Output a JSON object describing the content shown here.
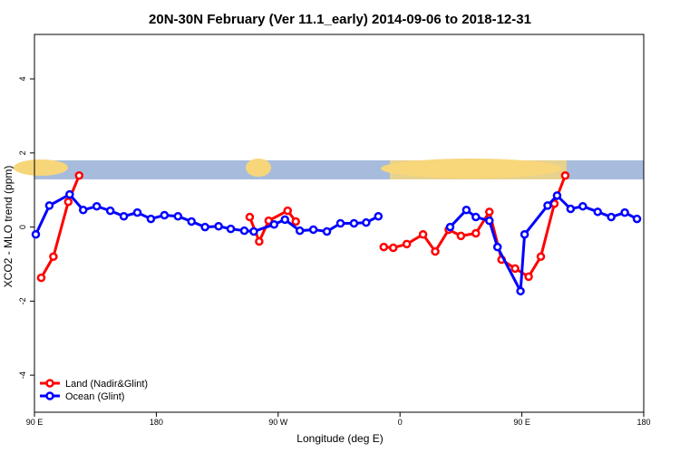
{
  "chart_data": {
    "type": "line",
    "title": "20N-30N February (Ver 11.1_early)   2014-09-06 to 2018-12-31",
    "x_label": "Longitude (deg E)",
    "y_label": "XCO2 - MLO trend (ppm)",
    "xlim": [
      90,
      540
    ],
    "ylim": [
      -5,
      5.2
    ],
    "xticks": [
      {
        "value": 90,
        "label": "90 E"
      },
      180,
      {
        "value": 270,
        "label": "90 W"
      },
      {
        "value": 360,
        "label": "0"
      },
      {
        "value": 450,
        "label": "90 E"
      },
      {
        "value": 540,
        "label": "180"
      }
    ],
    "yticks": [
      -4,
      -2,
      0,
      2,
      4
    ],
    "legend": "bottom-left",
    "series": [
      {
        "name": "Land (Nadir&Glint)",
        "color": "#ff0000",
        "x": [
          95,
          104,
          115,
          123,
          null,
          249,
          256,
          263,
          277,
          283,
          null,
          348,
          355,
          365,
          377,
          386,
          396,
          405,
          416,
          426,
          435,
          445,
          455,
          464,
          474,
          482
        ],
        "values": [
          -1.37,
          -0.8,
          0.68,
          1.39,
          null,
          0.27,
          -0.39,
          0.17,
          0.44,
          0.15,
          null,
          -0.54,
          -0.56,
          -0.46,
          -0.2,
          -0.66,
          -0.07,
          -0.24,
          -0.17,
          0.41,
          -0.88,
          -1.12,
          -1.34,
          -0.8,
          0.63,
          1.39
        ]
      },
      {
        "name": "Ocean (Glint)",
        "color": "#0000ff",
        "x": [
          91,
          101,
          116,
          126,
          136,
          146,
          156,
          166,
          176,
          186,
          196,
          206,
          216,
          226,
          235,
          245,
          252,
          267,
          275,
          286,
          296,
          306,
          316,
          326,
          335,
          344,
          null,
          397,
          409,
          416,
          426,
          432,
          449,
          452,
          469,
          476,
          486,
          495,
          506,
          516,
          526,
          535
        ],
        "values": [
          -0.2,
          0.58,
          0.88,
          0.46,
          0.56,
          0.44,
          0.29,
          0.39,
          0.22,
          0.32,
          0.29,
          0.15,
          0,
          0.02,
          -0.05,
          -0.1,
          -0.12,
          0.07,
          0.2,
          -0.1,
          -0.07,
          -0.12,
          0.1,
          0.1,
          0.12,
          0.29,
          null,
          0,
          0.46,
          0.27,
          0.17,
          -0.54,
          -1.73,
          -0.2,
          0.58,
          0.85,
          0.49,
          0.56,
          0.41,
          0.27,
          0.39,
          0.22
        ]
      }
    ]
  }
}
